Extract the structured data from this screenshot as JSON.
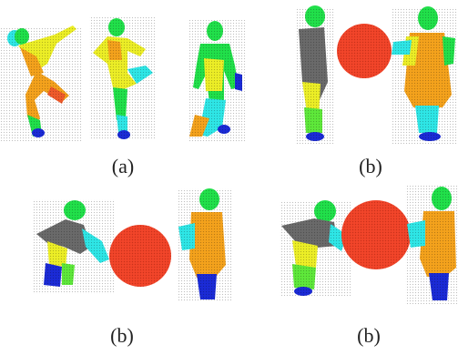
{
  "figure": {
    "captions": [
      "(a)",
      "(b)",
      "(b)",
      "(b)"
    ]
  },
  "colors": {
    "head": "#21e04a",
    "torso_gray": "#6a6a6a",
    "arm_cyan": "#2ee6e6",
    "body_orange": "#f4a21c",
    "body_yellow": "#ecee26",
    "legs_green": "#5ee83a",
    "feet_blue": "#1b2bd6",
    "ball_red": "#f2452a"
  },
  "icons": {
    "figure_type": "colored-point-cloud-human-silhouettes"
  }
}
